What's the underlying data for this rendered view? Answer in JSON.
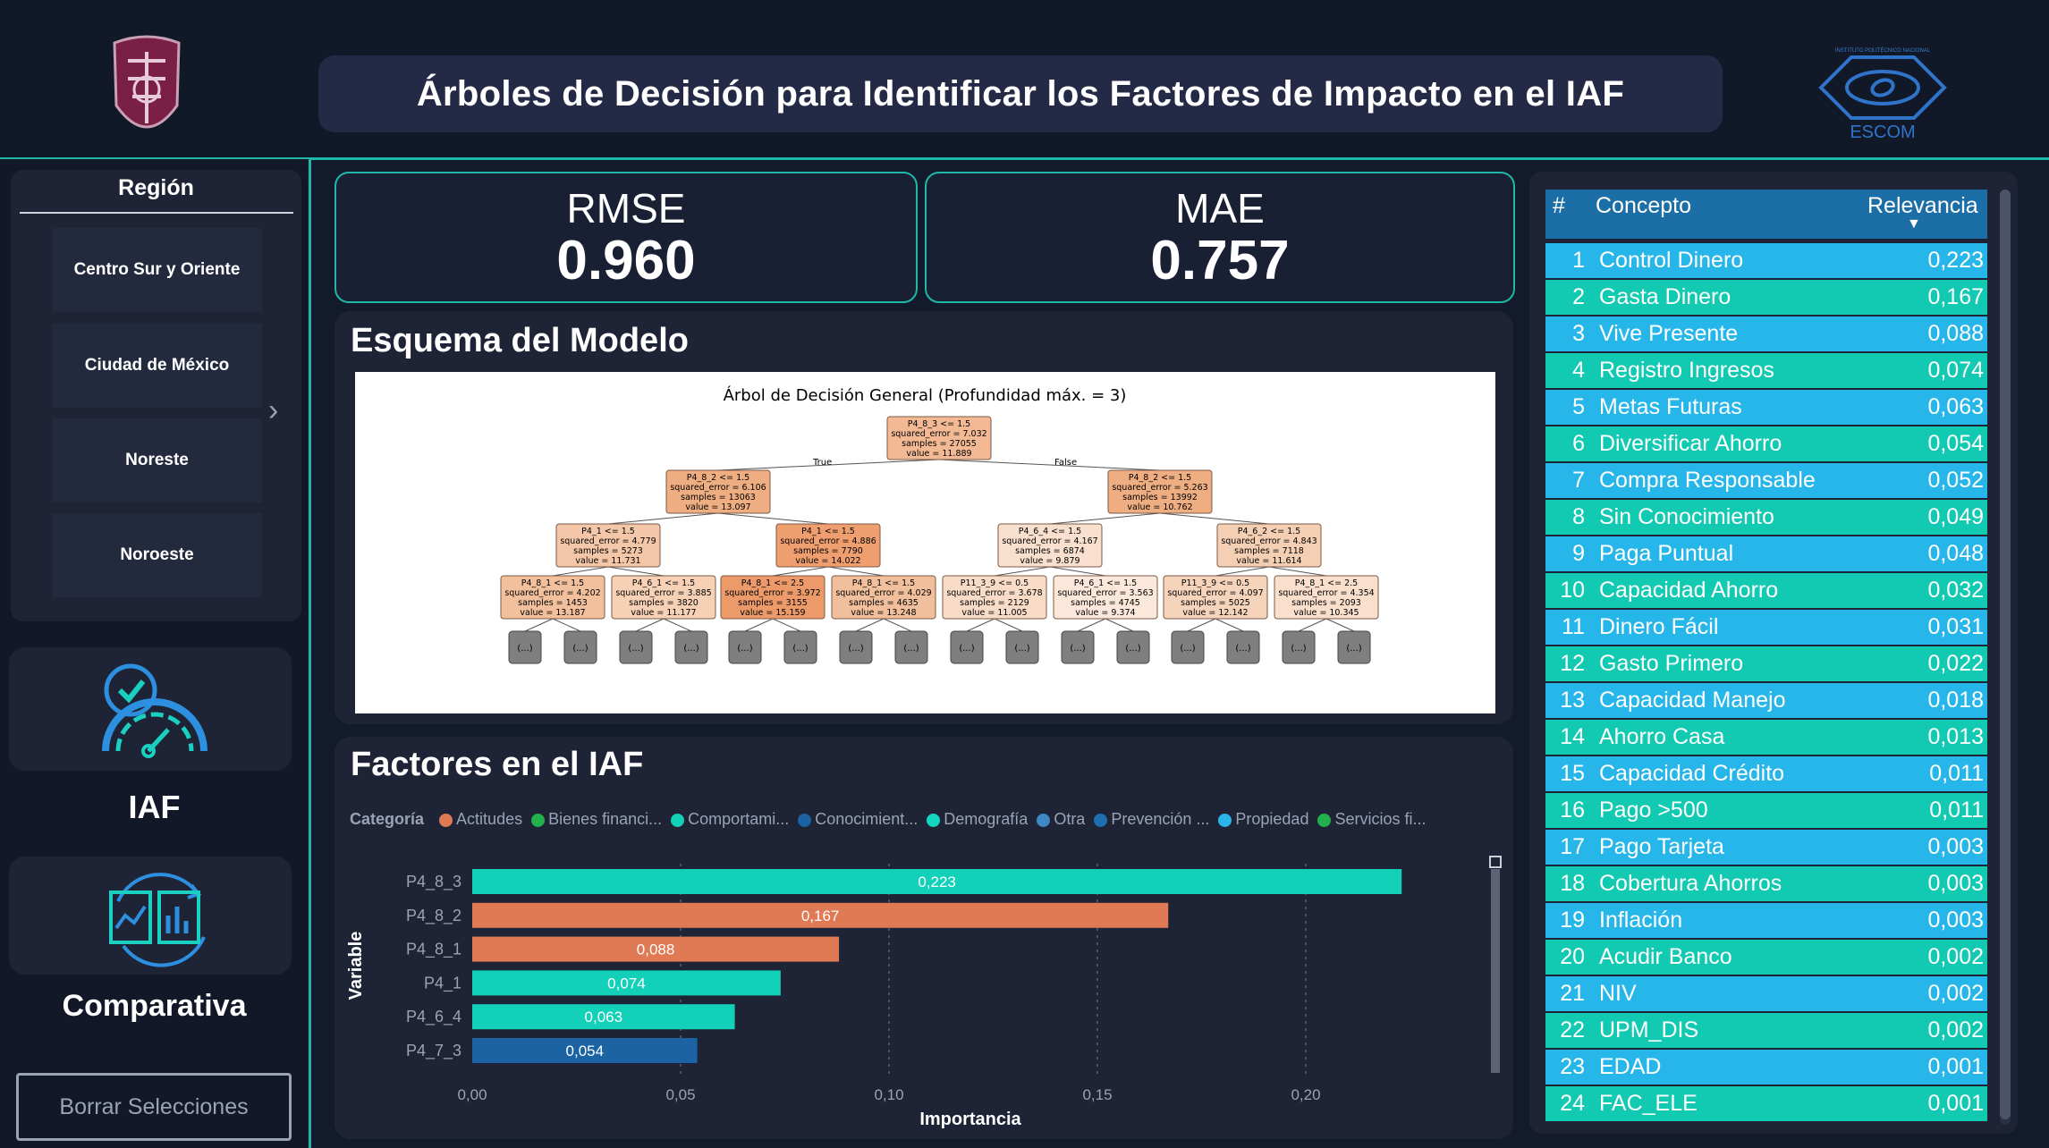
{
  "header": {
    "title": "Árboles de Decisión para Identificar los Factores de Impacto en el IAF"
  },
  "logos": {
    "left": "IPN",
    "right_small": "INSTITUTO POLITÉCNICO NACIONAL",
    "right": "ESCOM"
  },
  "region_slicer": {
    "title": "Región",
    "items": [
      "Centro Sur y Oriente",
      "Ciudad de México",
      "Noreste",
      "Noroeste"
    ]
  },
  "nav": {
    "iaf_label": "IAF",
    "comparativa_label": "Comparativa",
    "clear_button": "Borrar Selecciones"
  },
  "metrics": {
    "rmse_label": "RMSE",
    "rmse_value": "0.960",
    "mae_label": "MAE",
    "mae_value": "0.757"
  },
  "tree_panel": {
    "title": "Esquema del Modelo",
    "image_title": "Árbol de Decisión General (Profundidad máx. = 3)",
    "true_label": "True",
    "false_label": "False",
    "root": [
      "P4_8_3 <= 1.5",
      "squared_error = 7.032",
      "samples = 27055",
      "value = 11.889"
    ],
    "level1": [
      [
        "P4_8_2 <= 1.5",
        "squared_error = 6.106",
        "samples = 13063",
        "value = 13.097"
      ],
      [
        "P4_8_2 <= 1.5",
        "squared_error = 5.263",
        "samples = 13992",
        "value = 10.762"
      ]
    ],
    "level2": [
      [
        "P4_1 <= 1.5",
        "squared_error = 4.779",
        "samples = 5273",
        "value = 11.731"
      ],
      [
        "P4_1 <= 1.5",
        "squared_error = 4.886",
        "samples = 7790",
        "value = 14.022"
      ],
      [
        "P4_6_4 <= 1.5",
        "squared_error = 4.167",
        "samples = 6874",
        "value = 9.879"
      ],
      [
        "P4_6_2 <= 1.5",
        "squared_error = 4.843",
        "samples = 7118",
        "value = 11.614"
      ]
    ],
    "level3": [
      [
        "P4_8_1 <= 1.5",
        "squared_error = 4.202",
        "samples = 1453",
        "value = 13.187"
      ],
      [
        "P4_6_1 <= 1.5",
        "squared_error = 3.885",
        "samples = 3820",
        "value = 11.177"
      ],
      [
        "P4_8_1 <= 2.5",
        "squared_error = 3.972",
        "samples = 3155",
        "value = 15.159"
      ],
      [
        "P4_8_1 <= 1.5",
        "squared_error = 4.029",
        "samples = 4635",
        "value = 13.248"
      ],
      [
        "P11_3_9 <= 0.5",
        "squared_error = 3.678",
        "samples = 2129",
        "value = 11.005"
      ],
      [
        "P4_6_1 <= 1.5",
        "squared_error = 3.563",
        "samples = 4745",
        "value = 9.374"
      ],
      [
        "P11_3_9 <= 0.5",
        "squared_error = 4.097",
        "samples = 5025",
        "value = 12.142"
      ],
      [
        "P4_8_1 <= 2.5",
        "squared_error = 4.354",
        "samples = 2093",
        "value = 10.345"
      ]
    ],
    "leaf_label": "(...)"
  },
  "factors_panel": {
    "title": "Factores en el IAF",
    "legend_title": "Categoría",
    "legend": [
      {
        "label": "Actitudes",
        "color": "#e07a55"
      },
      {
        "label": "Bienes financi...",
        "color": "#22b14c"
      },
      {
        "label": "Comportami...",
        "color": "#12d1b8"
      },
      {
        "label": "Conocimient...",
        "color": "#1b63a3"
      },
      {
        "label": "Demografía",
        "color": "#14d6c0"
      },
      {
        "label": "Otra",
        "color": "#3f88c5"
      },
      {
        "label": "Prevención ...",
        "color": "#1e6fb0"
      },
      {
        "label": "Propiedad",
        "color": "#2bb5ea"
      },
      {
        "label": "Servicios fi...",
        "color": "#22b14c"
      }
    ]
  },
  "chart_data": {
    "type": "bar",
    "orientation": "horizontal",
    "categories": [
      "P4_8_3",
      "P4_8_2",
      "P4_8_1",
      "P4_1",
      "P4_6_4",
      "P4_7_3"
    ],
    "values": [
      0.223,
      0.167,
      0.088,
      0.074,
      0.063,
      0.054
    ],
    "labels": [
      "0,223",
      "0,167",
      "0,088",
      "0,074",
      "0,063",
      "0,054"
    ],
    "colors": [
      "#12d1b8",
      "#e07a55",
      "#e07a55",
      "#12d1b8",
      "#12d1b8",
      "#1b63a3"
    ],
    "xlabel": "Importancia",
    "ylabel": "Variable",
    "xlim": [
      0,
      0.22
    ],
    "xticks": [
      "0,00",
      "0,05",
      "0,10",
      "0,15",
      "0,20"
    ]
  },
  "relevance_table": {
    "headers": {
      "num": "#",
      "concept": "Concepto",
      "relevance": "Relevancia"
    },
    "rows": [
      {
        "n": "1",
        "concepto": "Control Dinero",
        "valor": "0,223",
        "color": "#27b6ea"
      },
      {
        "n": "2",
        "concepto": "Gasta Dinero",
        "valor": "0,167",
        "color": "#12c9b2"
      },
      {
        "n": "3",
        "concepto": "Vive Presente",
        "valor": "0,088",
        "color": "#27b6ea"
      },
      {
        "n": "4",
        "concepto": "Registro Ingresos",
        "valor": "0,074",
        "color": "#12c9b2"
      },
      {
        "n": "5",
        "concepto": "Metas Futuras",
        "valor": "0,063",
        "color": "#27b6ea"
      },
      {
        "n": "6",
        "concepto": "Diversificar Ahorro",
        "valor": "0,054",
        "color": "#12c9b2"
      },
      {
        "n": "7",
        "concepto": "Compra Responsable",
        "valor": "0,052",
        "color": "#27b6ea"
      },
      {
        "n": "8",
        "concepto": "Sin Conocimiento",
        "valor": "0,049",
        "color": "#12c9b2"
      },
      {
        "n": "9",
        "concepto": "Paga Puntual",
        "valor": "0,048",
        "color": "#27b6ea"
      },
      {
        "n": "10",
        "concepto": "Capacidad Ahorro",
        "valor": "0,032",
        "color": "#12c9b2"
      },
      {
        "n": "11",
        "concepto": "Dinero Fácil",
        "valor": "0,031",
        "color": "#27b6ea"
      },
      {
        "n": "12",
        "concepto": "Gasto Primero",
        "valor": "0,022",
        "color": "#12c9b2"
      },
      {
        "n": "13",
        "concepto": "Capacidad Manejo",
        "valor": "0,018",
        "color": "#27b6ea"
      },
      {
        "n": "14",
        "concepto": "Ahorro Casa",
        "valor": "0,013",
        "color": "#12c9b2"
      },
      {
        "n": "15",
        "concepto": "Capacidad Crédito",
        "valor": "0,011",
        "color": "#27b6ea"
      },
      {
        "n": "16",
        "concepto": "Pago >500",
        "valor": "0,011",
        "color": "#12c9b2"
      },
      {
        "n": "17",
        "concepto": "Pago Tarjeta",
        "valor": "0,003",
        "color": "#27b6ea"
      },
      {
        "n": "18",
        "concepto": "Cobertura Ahorros",
        "valor": "0,003",
        "color": "#12c9b2"
      },
      {
        "n": "19",
        "concepto": "Inflación",
        "valor": "0,003",
        "color": "#27b6ea"
      },
      {
        "n": "20",
        "concepto": "Acudir Banco",
        "valor": "0,002",
        "color": "#12c9b2"
      },
      {
        "n": "21",
        "concepto": "NIV",
        "valor": "0,002",
        "color": "#27b6ea"
      },
      {
        "n": "22",
        "concepto": "UPM_DIS",
        "valor": "0,002",
        "color": "#12c9b2"
      },
      {
        "n": "23",
        "concepto": "EDAD",
        "valor": "0,001",
        "color": "#27b6ea"
      },
      {
        "n": "24",
        "concepto": "FAC_ELE",
        "valor": "0,001",
        "color": "#12c9b2"
      }
    ]
  }
}
